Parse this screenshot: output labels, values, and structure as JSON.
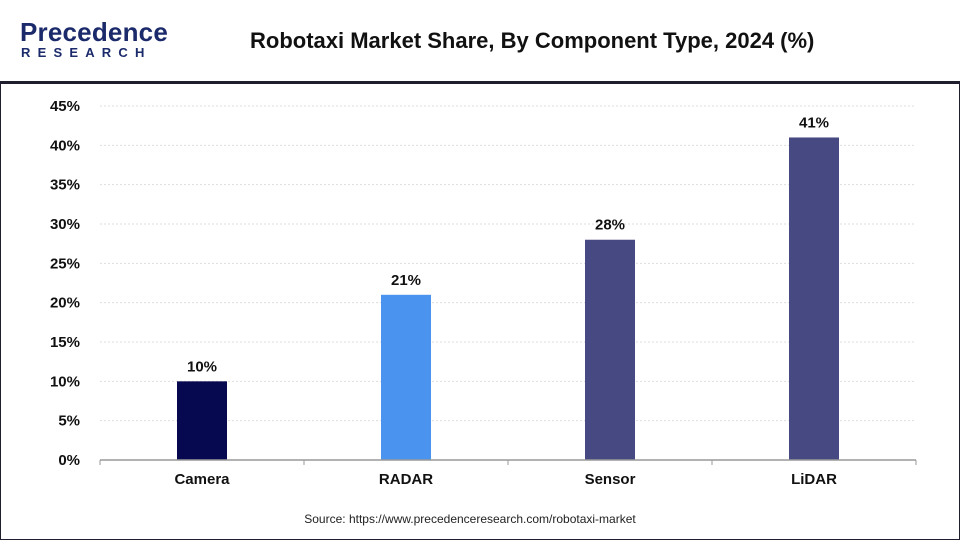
{
  "header": {
    "logo_main": "Precedence",
    "logo_sub": "RESEARCH",
    "title": "Robotaxi Market Share, By Component Type, 2024 (%)"
  },
  "footer": {
    "source": "Source: https://www.precedenceresearch.com/robotaxi-market"
  },
  "colors": {
    "accent": "#1b2a6b",
    "grid": "#dddddd",
    "axis": "#999999"
  },
  "chart_data": {
    "type": "bar",
    "title": "Robotaxi Market Share, By Component Type, 2024 (%)",
    "xlabel": "",
    "ylabel": "",
    "categories": [
      "Camera",
      "RADAR",
      "Sensor",
      "LiDAR"
    ],
    "values": [
      10,
      21,
      28,
      41
    ],
    "data_labels": [
      "10%",
      "21%",
      "28%",
      "41%"
    ],
    "bar_colors": [
      "#06094f",
      "#4a93ee",
      "#474a82",
      "#474a82"
    ],
    "ylim": [
      0,
      45
    ],
    "yticks": [
      0,
      5,
      10,
      15,
      20,
      25,
      30,
      35,
      40,
      45
    ],
    "ytick_labels": [
      "0%",
      "5%",
      "10%",
      "15%",
      "20%",
      "25%",
      "30%",
      "35%",
      "40%",
      "45%"
    ],
    "grid": true,
    "legend": "none"
  }
}
